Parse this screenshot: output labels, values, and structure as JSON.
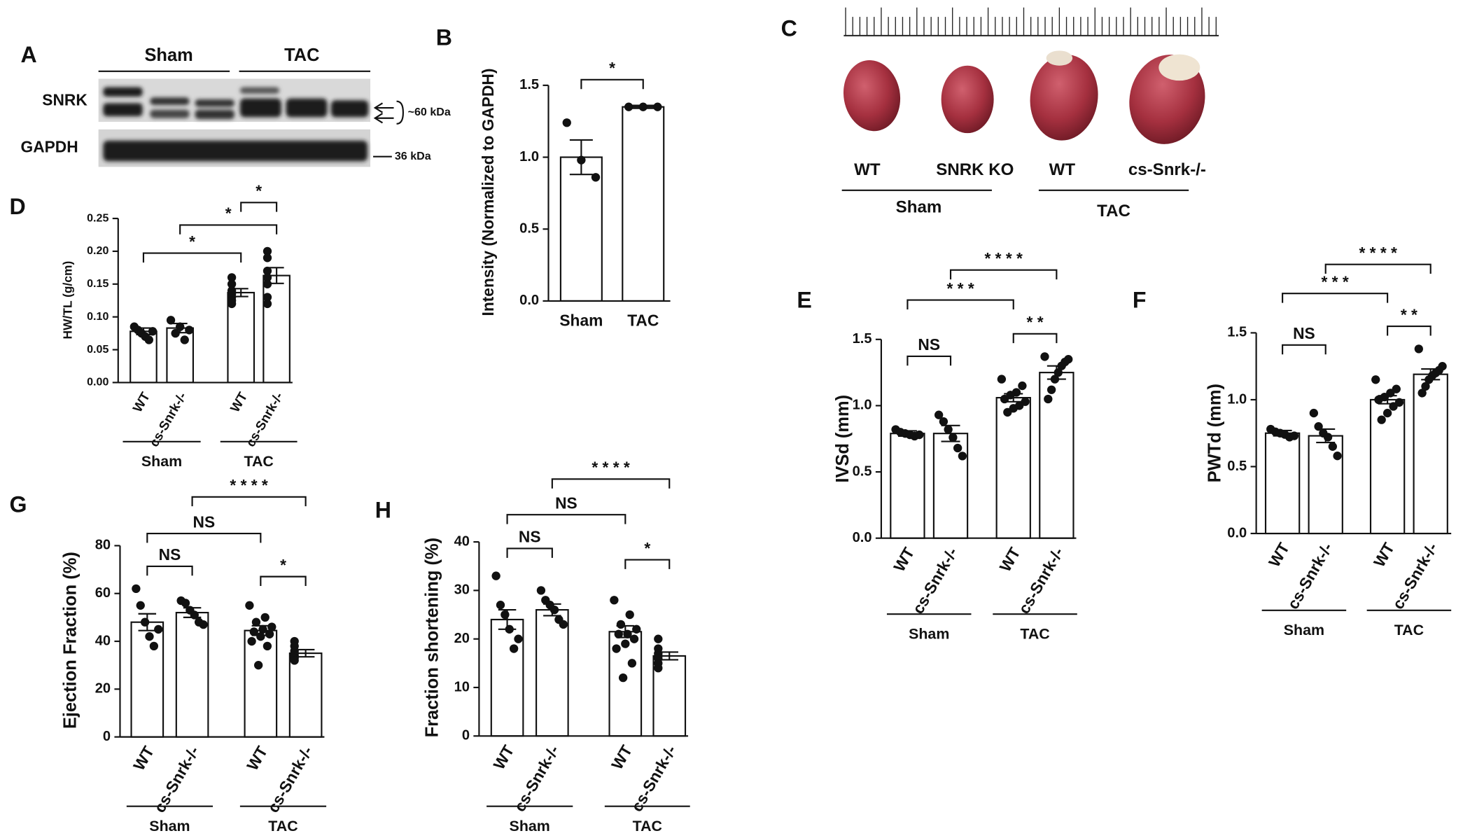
{
  "blot": {
    "panel": "A",
    "groups": [
      "Sham",
      "TAC"
    ],
    "rows": [
      "SNRK",
      "GAPDH"
    ],
    "markers": [
      "~60 kDa",
      "36 kDa"
    ]
  },
  "photo": {
    "panel": "C",
    "labels": [
      "WT",
      "SNRK KO",
      "WT",
      "cs-Snrk-/-"
    ],
    "groups": [
      "Sham",
      "TAC"
    ]
  },
  "chart_data": [
    {
      "type": "bar",
      "panel": "B",
      "ylabel": "Intensity (Normalized to GAPDH)",
      "color": "#ffffff",
      "categories": [
        "Sham",
        "TAC"
      ],
      "values": [
        1.0,
        1.35
      ],
      "errors": [
        0.12,
        0.01
      ],
      "points": [
        [
          1.24,
          0.98,
          0.86
        ],
        [
          1.35,
          1.35,
          1.35
        ]
      ],
      "ylim": [
        0,
        1.5
      ],
      "yticks": [
        {
          "value": 0,
          "label": "0.0"
        },
        {
          "value": 0.5,
          "label": "0.5"
        },
        {
          "value": 1,
          "label": "1.0"
        },
        {
          "value": 1.5,
          "label": "1.5"
        }
      ],
      "annotations": [
        "*"
      ]
    },
    {
      "type": "bar",
      "panel": "D",
      "ylabel": "HW/TL (g/cm)",
      "color": "#ffffff",
      "categories": [
        "WT",
        "cs-Snrk-/-",
        "WT",
        "cs-Snrk-/-"
      ],
      "groups": [
        "Sham",
        "TAC"
      ],
      "values": [
        0.078,
        0.083,
        0.137,
        0.163
      ],
      "errors": [
        0.005,
        0.007,
        0.006,
        0.012
      ],
      "points": [
        [
          0.085,
          0.08,
          0.075,
          0.07,
          0.065,
          0.078
        ],
        [
          0.095,
          0.085,
          0.08,
          0.075,
          0.065
        ],
        [
          0.16,
          0.15,
          0.14,
          0.135,
          0.13,
          0.125,
          0.12
        ],
        [
          0.2,
          0.19,
          0.17,
          0.16,
          0.15,
          0.13,
          0.12
        ]
      ],
      "ylim": [
        0,
        0.25
      ],
      "yticks": [
        {
          "value": 0,
          "label": "0.00"
        },
        {
          "value": 0.05,
          "label": "0.05"
        },
        {
          "value": 0.1,
          "label": "0.10"
        },
        {
          "value": 0.15,
          "label": "0.15"
        },
        {
          "value": 0.2,
          "label": "0.20"
        },
        {
          "value": 0.25,
          "label": "0.25"
        }
      ],
      "annotations": [
        "*",
        "*",
        "*"
      ]
    },
    {
      "type": "bar",
      "panel": "E",
      "ylabel": "IVSd (mm)",
      "color": "#ffffff",
      "categories": [
        "WT",
        "cs-Snrk-/-",
        "WT",
        "cs-Snrk-/-"
      ],
      "groups": [
        "Sham",
        "TAC"
      ],
      "values": [
        0.79,
        0.79,
        1.06,
        1.25
      ],
      "errors": [
        0.02,
        0.06,
        0.03,
        0.05
      ],
      "points": [
        [
          0.82,
          0.8,
          0.79,
          0.78,
          0.77,
          0.78
        ],
        [
          0.93,
          0.88,
          0.82,
          0.76,
          0.68,
          0.62
        ],
        [
          1.2,
          1.15,
          1.1,
          1.08,
          1.05,
          1.03,
          1.0,
          0.98,
          0.95
        ],
        [
          1.37,
          1.35,
          1.33,
          1.3,
          1.25,
          1.2,
          1.12,
          1.05
        ]
      ],
      "ylim": [
        0,
        1.5
      ],
      "yticks": [
        {
          "value": 0,
          "label": "0.0"
        },
        {
          "value": 0.5,
          "label": "0.5"
        },
        {
          "value": 1,
          "label": "1.0"
        },
        {
          "value": 1.5,
          "label": "1.5"
        }
      ],
      "annotations": [
        "NS",
        "* *",
        "* * *",
        "* * * *"
      ]
    },
    {
      "type": "bar",
      "panel": "F",
      "ylabel": "PWTd (mm)",
      "color": "#ffffff",
      "categories": [
        "WT",
        "cs-Snrk-/-",
        "WT",
        "cs-Snrk-/-"
      ],
      "groups": [
        "Sham",
        "TAC"
      ],
      "values": [
        0.75,
        0.73,
        1.0,
        1.19
      ],
      "errors": [
        0.02,
        0.05,
        0.03,
        0.04
      ],
      "points": [
        [
          0.78,
          0.76,
          0.75,
          0.74,
          0.72,
          0.73
        ],
        [
          0.9,
          0.8,
          0.75,
          0.72,
          0.65,
          0.58
        ],
        [
          1.15,
          1.08,
          1.05,
          1.02,
          1.0,
          0.98,
          0.95,
          0.9,
          0.85
        ],
        [
          1.38,
          1.25,
          1.22,
          1.2,
          1.18,
          1.15,
          1.1,
          1.05
        ]
      ],
      "ylim": [
        0,
        1.5
      ],
      "yticks": [
        {
          "value": 0,
          "label": "0.0"
        },
        {
          "value": 0.5,
          "label": "0.5"
        },
        {
          "value": 1,
          "label": "1.0"
        },
        {
          "value": 1.5,
          "label": "1.5"
        }
      ],
      "annotations": [
        "NS",
        "* *",
        "* * *",
        "* * * *"
      ]
    },
    {
      "type": "bar",
      "panel": "G",
      "ylabel": "Ejection Fraction (%)",
      "color": "#ffffff",
      "categories": [
        "WT",
        "cs-Snrk-/-",
        "WT",
        "cs-Snrk-/-"
      ],
      "groups": [
        "Sham",
        "TAC"
      ],
      "values": [
        48,
        52,
        44.5,
        35
      ],
      "errors": [
        3.5,
        2,
        2,
        1.5
      ],
      "points": [
        [
          62,
          55,
          48,
          42,
          38,
          45
        ],
        [
          57,
          56,
          53,
          51,
          48,
          47
        ],
        [
          55,
          50,
          48,
          46,
          45,
          44,
          43,
          42,
          40,
          38,
          30
        ],
        [
          40,
          38,
          36,
          35,
          34,
          33,
          32
        ]
      ],
      "ylim": [
        0,
        80
      ],
      "yticks": [
        0,
        20,
        40,
        60,
        80
      ],
      "annotations": [
        "NS",
        "*",
        "NS",
        "* * * *"
      ]
    },
    {
      "type": "bar",
      "panel": "H",
      "ylabel": "Fraction shortening (%)",
      "color": "#ffffff",
      "categories": [
        "WT",
        "cs-Snrk-/-",
        "WT",
        "cs-Snrk-/-"
      ],
      "groups": [
        "Sham",
        "TAC"
      ],
      "values": [
        24,
        26,
        21.5,
        16.5
      ],
      "errors": [
        2,
        1.2,
        1.2,
        0.8
      ],
      "points": [
        [
          33,
          27,
          25,
          22,
          18,
          20
        ],
        [
          30,
          28,
          27,
          26,
          24,
          23
        ],
        [
          28,
          25,
          23,
          22,
          21,
          21,
          20,
          19,
          18,
          15,
          12
        ],
        [
          20,
          18,
          17,
          16.5,
          16,
          15,
          14
        ]
      ],
      "ylim": [
        0,
        40
      ],
      "yticks": [
        0,
        10,
        20,
        30,
        40
      ],
      "annotations": [
        "NS",
        "*",
        "NS",
        "* * * *"
      ]
    }
  ]
}
